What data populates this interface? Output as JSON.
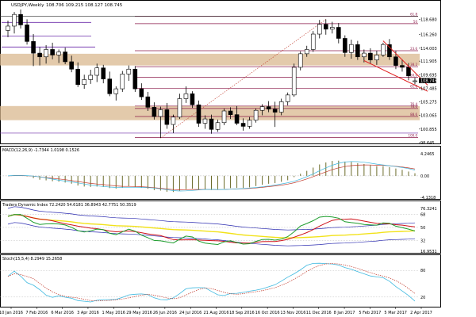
{
  "chart_data": [
    {
      "type": "candlestick",
      "title": "USDJPY,Weekly",
      "ohlc_header": "108.706 109.215 108.127 108.745",
      "price_axis_ticks": [
        "118.680",
        "116.260",
        "114.003",
        "111.905",
        "109.695",
        "107.485",
        "105.275",
        "103.065",
        "100.855",
        "98.645"
      ],
      "current_price_label": "108.745",
      "y_range": [
        98.645,
        120.3
      ],
      "x_labels": [
        "10 Jan 2016",
        "7 Feb 2016",
        "6 Mar 2016",
        "3 Apr 2016",
        "1 May 2016",
        "29 May 2016",
        "26 Jun 2016",
        "24 Jul 2016",
        "21 Aug 2016",
        "18 Sep 2016",
        "16 Oct 2016",
        "13 Nov 2016",
        "11 Dec 2016",
        "8 Jan 2017",
        "5 Feb 2017",
        "5 Mar 2017",
        "2 Apr 2017"
      ],
      "fib_levels": [
        {
          "label": "61.8",
          "price": 119.2
        },
        {
          "label": "50",
          "price": 118.0
        },
        {
          "label": "23.6",
          "price": 113.6
        },
        {
          "label": "38.2",
          "price": 111.0
        },
        {
          "label": "50.0",
          "price": 109.3
        },
        {
          "label": "61.8",
          "price": 107.5
        },
        {
          "label": "76.4",
          "price": 104.6
        },
        {
          "label": "78.6",
          "price": 104.2
        },
        {
          "label": "88.6",
          "price": 102.9
        },
        {
          "label": "100.0",
          "price": 99.5
        }
      ],
      "support_resistance_zones": [
        [
          111.2,
          113.1
        ],
        [
          102.3,
          104.6
        ]
      ],
      "candles": [
        {
          "o": 116.9,
          "h": 118.5,
          "l": 115.8,
          "c": 117.6
        },
        {
          "o": 117.6,
          "h": 119.9,
          "l": 116.4,
          "c": 119.5
        },
        {
          "o": 119.5,
          "h": 120.3,
          "l": 117.2,
          "c": 117.8
        },
        {
          "o": 117.8,
          "h": 118.7,
          "l": 114.6,
          "c": 115.1
        },
        {
          "o": 115.1,
          "h": 116.3,
          "l": 111.1,
          "c": 113.2
        },
        {
          "o": 113.2,
          "h": 114.2,
          "l": 111.2,
          "c": 112.6
        },
        {
          "o": 112.6,
          "h": 114.5,
          "l": 111.5,
          "c": 113.8
        },
        {
          "o": 113.8,
          "h": 114.9,
          "l": 112.2,
          "c": 112.9
        },
        {
          "o": 112.9,
          "h": 113.8,
          "l": 111.6,
          "c": 113.4
        },
        {
          "o": 113.4,
          "h": 114.1,
          "l": 111.4,
          "c": 111.8
        },
        {
          "o": 111.8,
          "h": 112.8,
          "l": 110.1,
          "c": 110.6
        },
        {
          "o": 110.6,
          "h": 111.7,
          "l": 107.7,
          "c": 108.1
        },
        {
          "o": 108.1,
          "h": 109.7,
          "l": 107.4,
          "c": 108.9
        },
        {
          "o": 108.9,
          "h": 110.5,
          "l": 108.2,
          "c": 109.6
        },
        {
          "o": 109.6,
          "h": 111.5,
          "l": 108.5,
          "c": 110.8
        },
        {
          "o": 110.8,
          "h": 111.3,
          "l": 108.3,
          "c": 109.0
        },
        {
          "o": 109.0,
          "h": 110.2,
          "l": 106.2,
          "c": 106.6
        },
        {
          "o": 106.6,
          "h": 107.8,
          "l": 105.5,
          "c": 107.4
        },
        {
          "o": 107.4,
          "h": 110.3,
          "l": 106.9,
          "c": 109.8
        },
        {
          "o": 109.8,
          "h": 111.2,
          "l": 108.7,
          "c": 110.6
        },
        {
          "o": 110.6,
          "h": 111.1,
          "l": 106.9,
          "c": 107.4
        },
        {
          "o": 107.4,
          "h": 108.3,
          "l": 105.6,
          "c": 106.1
        },
        {
          "o": 106.1,
          "h": 106.9,
          "l": 103.8,
          "c": 104.4
        },
        {
          "o": 104.4,
          "h": 105.2,
          "l": 102.4,
          "c": 102.9
        },
        {
          "o": 102.9,
          "h": 104.5,
          "l": 99.4,
          "c": 104.0
        },
        {
          "o": 104.0,
          "h": 105.1,
          "l": 100.9,
          "c": 101.6
        },
        {
          "o": 101.6,
          "h": 103.2,
          "l": 100.2,
          "c": 102.8
        },
        {
          "o": 102.8,
          "h": 106.6,
          "l": 102.5,
          "c": 105.8
        },
        {
          "o": 105.8,
          "h": 107.8,
          "l": 105.1,
          "c": 106.6
        },
        {
          "o": 106.6,
          "h": 107.0,
          "l": 104.3,
          "c": 104.8
        },
        {
          "o": 104.8,
          "h": 105.5,
          "l": 101.2,
          "c": 101.8
        },
        {
          "o": 101.8,
          "h": 103.1,
          "l": 100.9,
          "c": 102.5
        },
        {
          "o": 102.5,
          "h": 103.2,
          "l": 100.1,
          "c": 100.8
        },
        {
          "o": 100.8,
          "h": 102.4,
          "l": 100.4,
          "c": 101.9
        },
        {
          "o": 101.9,
          "h": 104.2,
          "l": 101.5,
          "c": 103.8
        },
        {
          "o": 103.8,
          "h": 104.4,
          "l": 102.5,
          "c": 103.2
        },
        {
          "o": 103.2,
          "h": 104.6,
          "l": 101.5,
          "c": 101.8
        },
        {
          "o": 101.8,
          "h": 102.6,
          "l": 100.6,
          "c": 101.3
        },
        {
          "o": 101.3,
          "h": 102.8,
          "l": 100.9,
          "c": 102.3
        },
        {
          "o": 102.3,
          "h": 104.2,
          "l": 101.9,
          "c": 103.9
        },
        {
          "o": 103.9,
          "h": 104.9,
          "l": 103.1,
          "c": 104.5
        },
        {
          "o": 104.5,
          "h": 105.4,
          "l": 103.6,
          "c": 104.1
        },
        {
          "o": 104.1,
          "h": 105.3,
          "l": 101.2,
          "c": 103.6
        },
        {
          "o": 103.6,
          "h": 105.8,
          "l": 103.1,
          "c": 105.3
        },
        {
          "o": 105.3,
          "h": 106.8,
          "l": 104.7,
          "c": 106.4
        },
        {
          "o": 106.4,
          "h": 111.5,
          "l": 106.1,
          "c": 110.9
        },
        {
          "o": 110.9,
          "h": 113.5,
          "l": 110.4,
          "c": 113.1
        },
        {
          "o": 113.1,
          "h": 114.4,
          "l": 112.6,
          "c": 113.8
        },
        {
          "o": 113.8,
          "h": 116.8,
          "l": 113.4,
          "c": 116.3
        },
        {
          "o": 116.3,
          "h": 118.6,
          "l": 115.6,
          "c": 117.9
        },
        {
          "o": 117.9,
          "h": 118.7,
          "l": 116.2,
          "c": 117.1
        },
        {
          "o": 117.1,
          "h": 118.3,
          "l": 116.4,
          "c": 117.4
        },
        {
          "o": 117.4,
          "h": 118.1,
          "l": 114.8,
          "c": 115.6
        },
        {
          "o": 115.6,
          "h": 116.1,
          "l": 112.6,
          "c": 113.3
        },
        {
          "o": 113.3,
          "h": 115.4,
          "l": 112.3,
          "c": 114.6
        },
        {
          "o": 114.6,
          "h": 115.2,
          "l": 112.1,
          "c": 112.6
        },
        {
          "o": 112.6,
          "h": 113.8,
          "l": 111.7,
          "c": 113.2
        },
        {
          "o": 113.2,
          "h": 114.0,
          "l": 111.5,
          "c": 112.1
        },
        {
          "o": 112.1,
          "h": 113.6,
          "l": 111.3,
          "c": 112.9
        },
        {
          "o": 112.9,
          "h": 114.9,
          "l": 112.6,
          "c": 114.6
        },
        {
          "o": 114.6,
          "h": 115.5,
          "l": 112.1,
          "c": 112.6
        },
        {
          "o": 112.6,
          "h": 113.6,
          "l": 110.6,
          "c": 111.2
        },
        {
          "o": 111.2,
          "h": 112.2,
          "l": 110.2,
          "c": 110.9
        },
        {
          "o": 110.9,
          "h": 111.6,
          "l": 108.8,
          "c": 109.5
        },
        {
          "o": 108.7,
          "h": 109.2,
          "l": 108.1,
          "c": 108.7
        }
      ]
    },
    {
      "type": "histogram",
      "title": "MACD(12,26,9) -1.7344 1.0198 0.1526",
      "y_ticks": [
        "4.2465",
        "0.00",
        "-4.1318"
      ],
      "y_range": [
        -4.13,
        4.25
      ]
    },
    {
      "type": "line",
      "title": "Traders Dynamic Index 72.2420 54.6181 36.8943 42.7751 50.3519",
      "y_ticks": [
        "76.3241",
        "68",
        "50",
        "32",
        "16.9531"
      ],
      "y_range": [
        16.95,
        76.32
      ]
    },
    {
      "type": "line",
      "title": "Stoch(15,5,4) 8.2949 15.2658",
      "y_ticks": [
        "80",
        "20"
      ],
      "y_range": [
        0,
        100
      ]
    }
  ],
  "colors": {
    "bull": "#ffffff",
    "bear": "#000000",
    "zone": "#d9b88f",
    "fib": "#8b1a4a",
    "macd_hist": "#6b6b2a",
    "macd_signal": "#c0392b",
    "macd_line2": "#3fb9e0",
    "tdi_green": "#1e9e2e",
    "tdi_red": "#d0141c",
    "tdi_yellow": "#f2e21a",
    "tdi_band": "#2a2ab0",
    "stoch_main": "#3fb9e0",
    "stoch_signal": "#c0392b",
    "wedge": "#e01b1b"
  }
}
